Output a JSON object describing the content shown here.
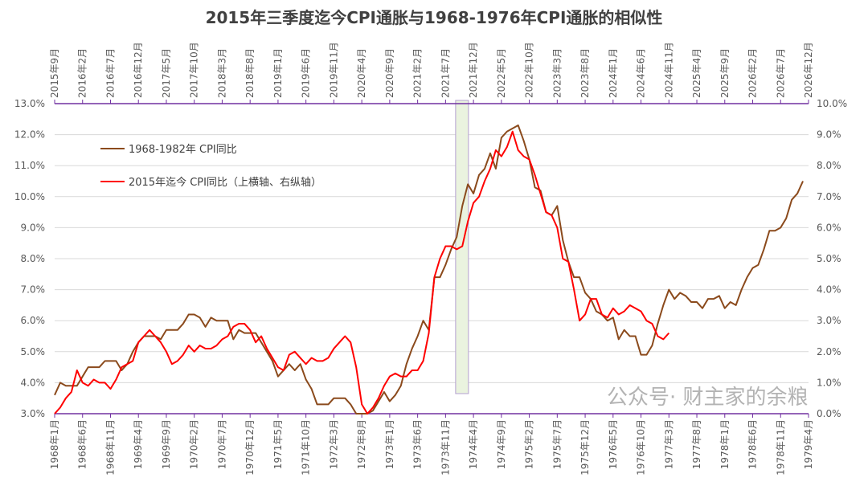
{
  "chart_data": {
    "type": "line",
    "title": "2015年三季度迄今CPI通胀与1968-1976年CPI通胀的相似性",
    "watermark": "公众号· 财主家的余粮",
    "colors": {
      "historical": "#8B4A1C",
      "recent": "#FF0000",
      "axis": "#7030A0",
      "grid": "#D9D9D9",
      "highlight_fill": "#EAF3DF",
      "highlight_stroke": "#B4A0D0"
    },
    "left_axis": {
      "ylim": [
        3,
        13
      ],
      "ticks": [
        "3.0%",
        "4.0%",
        "5.0%",
        "6.0%",
        "7.0%",
        "8.0%",
        "9.0%",
        "10.0%",
        "11.0%",
        "12.0%",
        "13.0%"
      ]
    },
    "right_axis": {
      "ylim": [
        0,
        10
      ],
      "ticks": [
        "0.0%",
        "1.0%",
        "2.0%",
        "3.0%",
        "4.0%",
        "5.0%",
        "6.0%",
        "7.0%",
        "8.0%",
        "9.0%",
        "10.0%"
      ]
    },
    "bottom_axis_labels": [
      "1968年1月",
      "1968年6月",
      "1968年11月",
      "1969年4月",
      "1969年9月",
      "1970年2月",
      "1970年7月",
      "1970年12月",
      "1971年5月",
      "1971年10月",
      "1972年3月",
      "1972年8月",
      "1973年1月",
      "1973年6月",
      "1973年11月",
      "1974年4月",
      "1974年9月",
      "1975年2月",
      "1975年7月",
      "1975年12月",
      "1976年5月",
      "1976年10月",
      "1977年3月",
      "1977年8月",
      "1978年1月",
      "1978年6月",
      "1978年11月",
      "1979年4月"
    ],
    "top_axis_labels": [
      "2015年9月",
      "2016年2月",
      "2016年7月",
      "2016年12月",
      "2017年5月",
      "2017年10月",
      "2018年3月",
      "2018年8月",
      "2019年1月",
      "2019年6月",
      "2019年11月",
      "2020年4月",
      "2020年9月",
      "2021年2月",
      "2021年7月",
      "2021年12月",
      "2022年5月",
      "2022年10月",
      "2023年3月",
      "2023年8月",
      "2024年1月",
      "2024年6月",
      "2024年11月",
      "2025年4月",
      "2025年9月",
      "2026年2月",
      "2026年7月",
      "2026年12月"
    ],
    "label_interval_months": 5,
    "highlight_months": [
      71.8,
      74.1
    ],
    "series": [
      {
        "name": "1968-1982年 CPI同比",
        "axis": "bottom-left",
        "start": "1968年1月",
        "values": [
          3.6,
          4.0,
          3.9,
          3.9,
          3.9,
          4.2,
          4.5,
          4.5,
          4.5,
          4.7,
          4.7,
          4.7,
          4.4,
          4.6,
          5.0,
          5.3,
          5.5,
          5.5,
          5.5,
          5.4,
          5.7,
          5.7,
          5.7,
          5.9,
          6.2,
          6.2,
          6.1,
          5.8,
          6.1,
          6.0,
          6.0,
          6.0,
          5.4,
          5.7,
          5.6,
          5.6,
          5.6,
          5.3,
          5.0,
          4.7,
          4.2,
          4.4,
          4.6,
          4.4,
          4.6,
          4.1,
          3.8,
          3.3,
          3.3,
          3.3,
          3.5,
          3.5,
          3.5,
          3.3,
          2.9,
          2.7,
          2.8,
          3.1,
          3.4,
          3.7,
          3.4,
          3.6,
          3.9,
          4.6,
          5.1,
          5.5,
          6.0,
          5.7,
          7.4,
          7.4,
          7.8,
          8.3,
          8.7,
          9.7,
          10.4,
          10.1,
          10.7,
          10.9,
          11.4,
          10.9,
          11.9,
          12.1,
          12.2,
          12.3,
          11.8,
          11.2,
          10.3,
          10.2,
          9.5,
          9.4,
          9.7,
          8.6,
          7.9,
          7.4,
          7.4,
          6.9,
          6.7,
          6.3,
          6.2,
          6.0,
          6.1,
          5.4,
          5.7,
          5.5,
          5.5,
          4.9,
          4.9,
          5.2,
          5.9,
          6.5,
          7.0,
          6.7,
          6.9,
          6.8,
          6.6,
          6.6,
          6.4,
          6.7,
          6.7,
          6.8,
          6.4,
          6.6,
          6.5,
          7.0,
          7.4,
          7.7,
          7.8,
          8.3,
          8.9,
          8.9,
          9.0,
          9.3,
          9.9,
          10.1,
          10.5
        ]
      },
      {
        "name": "2015年迄今 CPI同比（上横轴、右纵轴）",
        "axis": "top-right",
        "start": "2015年9月",
        "values": [
          0.0,
          0.2,
          0.5,
          0.7,
          1.4,
          1.0,
          0.9,
          1.1,
          1.0,
          1.0,
          0.8,
          1.1,
          1.5,
          1.6,
          1.7,
          2.3,
          2.5,
          2.7,
          2.5,
          2.3,
          2.0,
          1.6,
          1.7,
          1.9,
          2.2,
          2.0,
          2.2,
          2.1,
          2.1,
          2.2,
          2.4,
          2.5,
          2.8,
          2.9,
          2.9,
          2.7,
          2.3,
          2.5,
          2.1,
          1.8,
          1.5,
          1.4,
          1.9,
          2.0,
          1.8,
          1.6,
          1.8,
          1.7,
          1.7,
          1.8,
          2.1,
          2.3,
          2.5,
          2.3,
          1.5,
          0.3,
          0.0,
          0.2,
          0.5,
          0.9,
          1.2,
          1.3,
          1.2,
          1.2,
          1.4,
          1.4,
          1.7,
          2.6,
          4.4,
          5.0,
          5.4,
          5.4,
          5.3,
          5.4,
          6.2,
          6.8,
          7.0,
          7.5,
          7.9,
          8.5,
          8.3,
          8.6,
          9.1,
          8.5,
          8.3,
          8.2,
          7.7,
          7.1,
          6.5,
          6.4,
          6.0,
          5.0,
          4.9,
          4.0,
          3.0,
          3.2,
          3.7,
          3.7,
          3.2,
          3.1,
          3.4,
          3.2,
          3.3,
          3.5,
          3.4,
          3.3,
          3.0,
          2.9,
          2.5,
          2.4,
          2.6
        ]
      }
    ]
  }
}
